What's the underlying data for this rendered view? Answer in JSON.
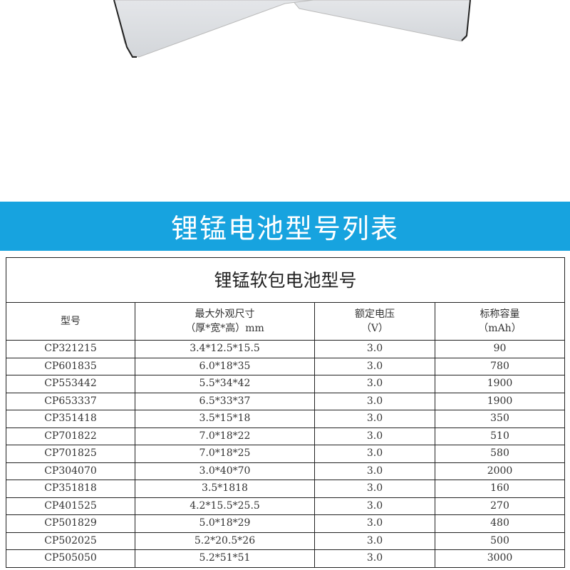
{
  "banner": {
    "title": "锂锰电池型号列表"
  },
  "table": {
    "title": "锂锰软包电池型号",
    "headers": [
      {
        "line1": "型号",
        "line2": ""
      },
      {
        "line1": "最大外观尺寸",
        "line2": "（厚*宽*高）mm"
      },
      {
        "line1": "额定电压",
        "line2": "（V）"
      },
      {
        "line1": "标称容量",
        "line2": "（mAh）"
      }
    ],
    "rows": [
      [
        "CP321215",
        "3.4*12.5*15.5",
        "3.0",
        "90"
      ],
      [
        "CP601835",
        "6.0*18*35",
        "3.0",
        "780"
      ],
      [
        "CP553442",
        "5.5*34*42",
        "3.0",
        "1900"
      ],
      [
        "CP653337",
        "6.5*33*37",
        "3.0",
        "1900"
      ],
      [
        "CP351418",
        "3.5*15*18",
        "3.0",
        "350"
      ],
      [
        "CP701822",
        "7.0*18*22",
        "3.0",
        "510"
      ],
      [
        "CP701825",
        "7.0*18*25",
        "3.0",
        "580"
      ],
      [
        "CP304070",
        "3.0*40*70",
        "3.0",
        "2000"
      ],
      [
        "CP351818",
        "3.5*1818",
        "3.0",
        "160"
      ],
      [
        "CP401525",
        "4.2*15.5*25.5",
        "3.0",
        "270"
      ],
      [
        "CP501829",
        "5.0*18*29",
        "3.0",
        "480"
      ],
      [
        "CP502025",
        "5.2*20.5*26",
        "3.0",
        "500"
      ],
      [
        "CP505050",
        "5.2*51*51",
        "3.0",
        "3000"
      ]
    ]
  },
  "colors": {
    "banner": "#17a3df"
  }
}
